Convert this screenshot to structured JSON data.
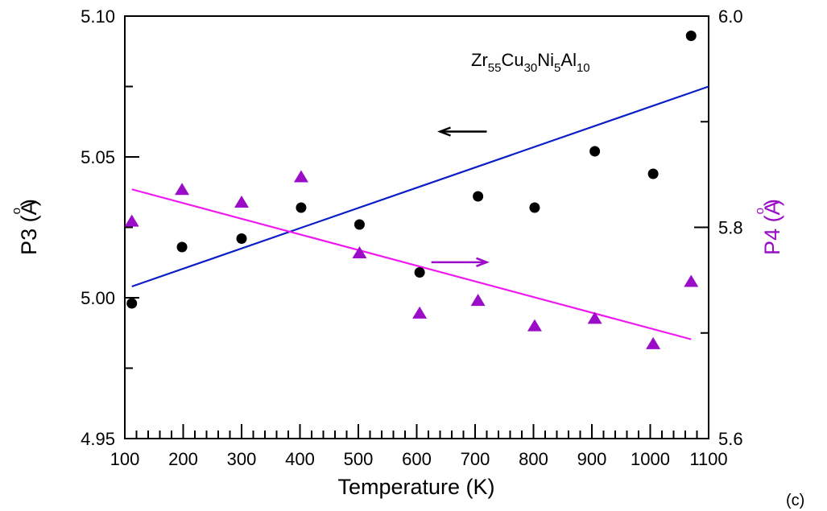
{
  "chart_data": {
    "type": "scatter",
    "panel_label": "(c)",
    "annotation": {
      "base": [
        "Zr",
        "Cu",
        "Ni",
        "Al"
      ],
      "subs": [
        "55",
        "30",
        "5",
        "10"
      ]
    },
    "xlabel": "Temperature (K)",
    "xlim": [
      100,
      1100
    ],
    "xticks": [
      100,
      200,
      300,
      400,
      500,
      600,
      700,
      800,
      900,
      1000,
      1100
    ],
    "y_left": {
      "label": "P3 (Å)",
      "label_base": "P3 (A",
      "label_ring": "o",
      "label_close": ")",
      "lim": [
        4.95,
        5.1
      ],
      "ticks": [
        "4.95",
        "5.00",
        "5.05",
        "5.10"
      ]
    },
    "y_right": {
      "label": "P4 (Å)",
      "label_base": "P4 (A",
      "label_ring": "o",
      "label_close": ")",
      "lim": [
        5.6,
        6.0
      ],
      "ticks": [
        "5.6",
        "5.8",
        "6.0"
      ]
    },
    "colors": {
      "p3_points": "#000000",
      "p3_fit": "#0b1ec8",
      "p4_points": "#9a0cc8",
      "p4_fit": "#f018f0",
      "right_axis_label": "#9a0cc8"
    },
    "series": [
      {
        "axis": "left",
        "marker": "circle",
        "x": [
          112,
          198,
          300,
          402,
          502,
          605,
          705,
          802,
          905,
          1005,
          1070
        ],
        "y": [
          4.998,
          5.018,
          5.021,
          5.032,
          5.026,
          5.009,
          5.036,
          5.032,
          5.052,
          5.044,
          5.093
        ]
      },
      {
        "axis": "right",
        "marker": "triangle",
        "x": [
          112,
          198,
          300,
          402,
          502,
          605,
          705,
          802,
          905,
          1005,
          1070
        ],
        "y": [
          5.805,
          5.835,
          5.823,
          5.847,
          5.775,
          5.718,
          5.73,
          5.706,
          5.713,
          5.689,
          5.748
        ]
      }
    ],
    "fits": [
      {
        "axis": "left",
        "x": [
          112,
          1100
        ],
        "y": [
          5.004,
          5.075
        ]
      },
      {
        "axis": "right",
        "x": [
          112,
          1070
        ],
        "y": [
          5.836,
          5.694
        ]
      }
    ],
    "arrows": [
      {
        "points_to": "left",
        "x": [
          720,
          640
        ],
        "y_left": 5.059
      },
      {
        "points_to": "right",
        "x": [
          625,
          720
        ],
        "y_right": 5.767
      }
    ]
  }
}
